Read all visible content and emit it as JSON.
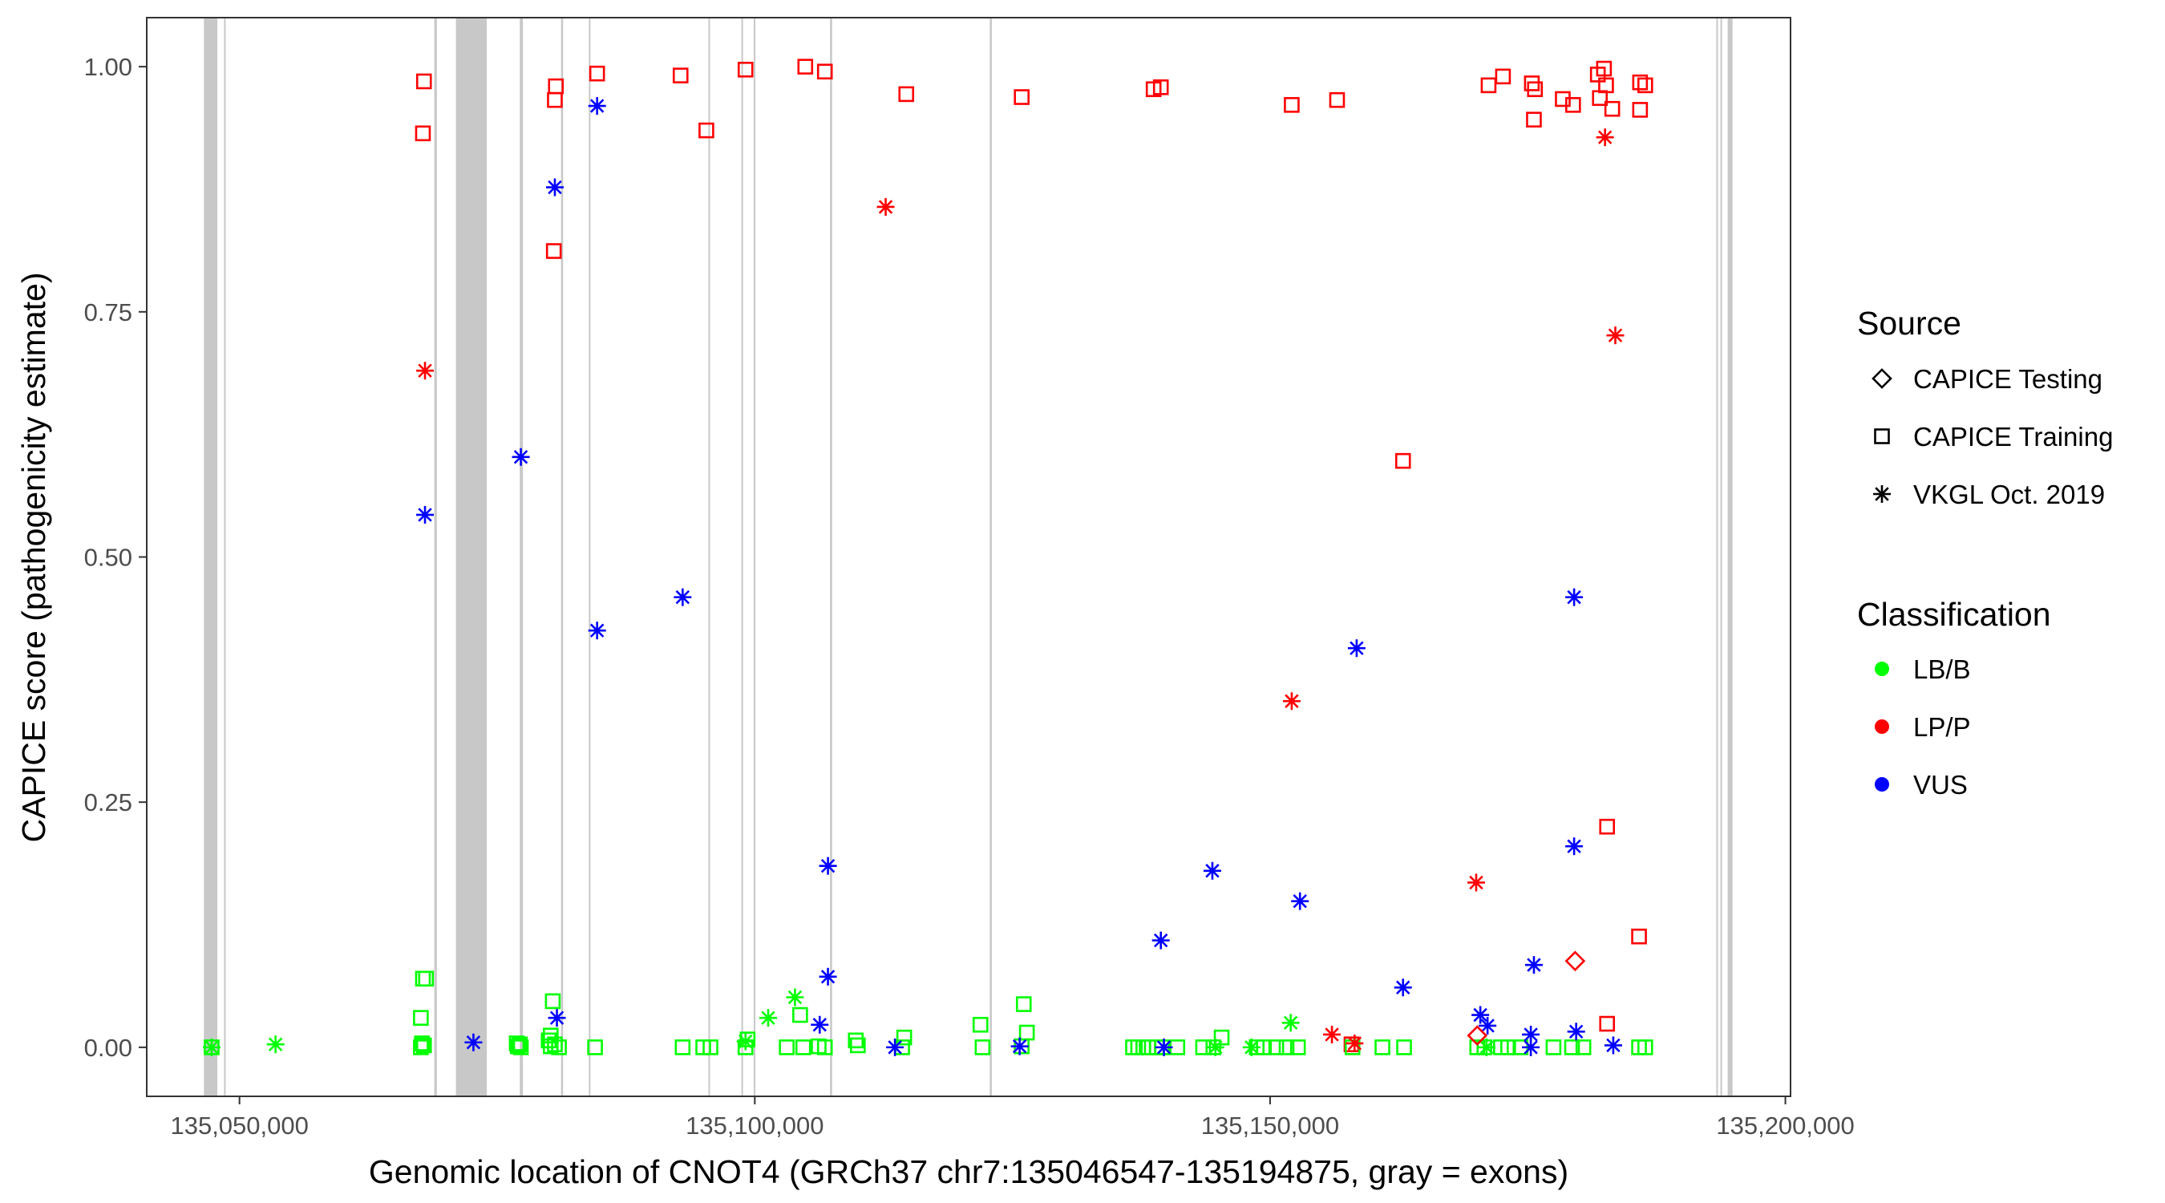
{
  "chart_data": {
    "type": "scatter",
    "xlabel": "Genomic location of CNOT4 (GRCh37 chr7:135046547-135194875, gray = exons)",
    "ylabel": "CAPICE score (pathogenicity estimate)",
    "xlim": [
      135041000,
      135200500
    ],
    "ylim": [
      -0.05,
      1.05
    ],
    "x_ticks": [
      {
        "value": 135050000,
        "label": "135,050,000"
      },
      {
        "value": 135100000,
        "label": "135,100,000"
      },
      {
        "value": 135150000,
        "label": "135,150,000"
      },
      {
        "value": 135200000,
        "label": "135,200,000"
      }
    ],
    "y_ticks": [
      {
        "value": 0,
        "label": "0.00"
      },
      {
        "value": 0.25,
        "label": "0.25"
      },
      {
        "value": 0.5,
        "label": "0.50"
      },
      {
        "value": 0.75,
        "label": "0.75"
      },
      {
        "value": 1.0,
        "label": "1.00"
      }
    ],
    "exons": [
      [
        135046547,
        135047850
      ],
      [
        135048500,
        135048650
      ],
      [
        135068900,
        135069150
      ],
      [
        135071000,
        135074000
      ],
      [
        135077200,
        135077500
      ],
      [
        135081200,
        135081400
      ],
      [
        135083900,
        135084000
      ],
      [
        135095500,
        135095600
      ],
      [
        135098700,
        135098800
      ],
      [
        135099900,
        135100000
      ],
      [
        135107300,
        135107500
      ],
      [
        135122800,
        135123000
      ],
      [
        135193300,
        135193450
      ],
      [
        135193700,
        135193850
      ],
      [
        135194400,
        135194875
      ]
    ],
    "legend": {
      "source_title": "Source",
      "sources": [
        {
          "name": "CAPICE Testing",
          "shape": "diamond"
        },
        {
          "name": "CAPICE Training",
          "shape": "square"
        },
        {
          "name": "VKGL Oct. 2019",
          "shape": "asterisk"
        }
      ],
      "classification_title": "Classification",
      "classifications": [
        {
          "name": "LB/B",
          "color": "#00ff00"
        },
        {
          "name": "LP/P",
          "color": "#ff0000"
        },
        {
          "name": "VUS",
          "color": "#0000ff"
        }
      ]
    },
    "series": [
      {
        "name": "CAPICE Training - LP/P",
        "source": "CAPICE Training",
        "classification": "LP/P",
        "points": [
          [
            135067900,
            0.985
          ],
          [
            135067800,
            0.932
          ],
          [
            135080700,
            0.98
          ],
          [
            135080600,
            0.966
          ],
          [
            135080500,
            0.812
          ],
          [
            135084700,
            0.993
          ],
          [
            135092800,
            0.991
          ],
          [
            135095300,
            0.935
          ],
          [
            135099100,
            0.997
          ],
          [
            135104900,
            1.0
          ],
          [
            135106800,
            0.995
          ],
          [
            135114700,
            0.972
          ],
          [
            135125900,
            0.969
          ],
          [
            135138700,
            0.977
          ],
          [
            135139400,
            0.979
          ],
          [
            135152100,
            0.961
          ],
          [
            135156500,
            0.966
          ],
          [
            135162900,
            0.598
          ],
          [
            135171200,
            0.981
          ],
          [
            135172600,
            0.99
          ],
          [
            135175400,
            0.983
          ],
          [
            135175700,
            0.977
          ],
          [
            135175600,
            0.946
          ],
          [
            135178400,
            0.967
          ],
          [
            135179400,
            0.961
          ],
          [
            135181800,
            0.992
          ],
          [
            135182400,
            0.998
          ],
          [
            135182600,
            0.981
          ],
          [
            135182000,
            0.968
          ],
          [
            135183200,
            0.957
          ],
          [
            135185900,
            0.984
          ],
          [
            135186400,
            0.981
          ],
          [
            135185900,
            0.956
          ],
          [
            135182700,
            0.225
          ],
          [
            135185800,
            0.113
          ],
          [
            135182700,
            0.024
          ],
          [
            135157900,
            0.003
          ]
        ]
      },
      {
        "name": "CAPICE Training - LB/B",
        "source": "CAPICE Training",
        "classification": "LB/B",
        "points": [
          [
            135047300,
            0.0
          ],
          [
            135067800,
            0.07
          ],
          [
            135068100,
            0.07
          ],
          [
            135067600,
            0.03
          ],
          [
            135067700,
            0.004
          ],
          [
            135067900,
            0.002
          ],
          [
            135067600,
            0.0
          ],
          [
            135076900,
            0.004
          ],
          [
            135077200,
            0.003
          ],
          [
            135077000,
            0.001
          ],
          [
            135077300,
            0.0
          ],
          [
            135080400,
            0.047
          ],
          [
            135080200,
            0.012
          ],
          [
            135080000,
            0.007
          ],
          [
            135080600,
            0.003
          ],
          [
            135080200,
            0.001
          ],
          [
            135081000,
            0.0
          ],
          [
            135084500,
            0.0
          ],
          [
            135093000,
            0.0
          ],
          [
            135095000,
            0.0
          ],
          [
            135095700,
            0.0
          ],
          [
            135099100,
            0.0
          ],
          [
            135099300,
            0.008
          ],
          [
            135103100,
            0.0
          ],
          [
            135104400,
            0.033
          ],
          [
            135104700,
            0.0
          ],
          [
            135106200,
            0.001
          ],
          [
            135106800,
            0.0
          ],
          [
            135109800,
            0.007
          ],
          [
            135110000,
            0.002
          ],
          [
            135114300,
            0.0
          ],
          [
            135114500,
            0.01
          ],
          [
            135121900,
            0.023
          ],
          [
            135122100,
            0.0
          ],
          [
            135126100,
            0.044
          ],
          [
            135126400,
            0.015
          ],
          [
            135125900,
            0.001
          ],
          [
            135136700,
            0.0
          ],
          [
            135137200,
            0.0
          ],
          [
            135137700,
            0.0
          ],
          [
            135138200,
            0.0
          ],
          [
            135139000,
            0.0
          ],
          [
            135139500,
            0.0
          ],
          [
            135141000,
            0.0
          ],
          [
            135143500,
            0.0
          ],
          [
            135145300,
            0.01
          ],
          [
            135144500,
            0.0
          ],
          [
            135148700,
            0.0
          ],
          [
            135149400,
            0.0
          ],
          [
            135150600,
            0.0
          ],
          [
            135151600,
            0.0
          ],
          [
            135152700,
            0.0
          ],
          [
            135158000,
            0.0
          ],
          [
            135160900,
            0.0
          ],
          [
            135163000,
            0.0
          ],
          [
            135170100,
            0.0
          ],
          [
            135170800,
            0.0
          ],
          [
            135172400,
            0.0
          ],
          [
            135173100,
            0.0
          ],
          [
            135174300,
            0.0
          ],
          [
            135177500,
            0.0
          ],
          [
            135179300,
            0.0
          ],
          [
            135180400,
            0.0
          ],
          [
            135185800,
            0.0
          ],
          [
            135186400,
            0.0
          ]
        ]
      },
      {
        "name": "VKGL - LP/P",
        "source": "VKGL Oct. 2019",
        "classification": "LP/P",
        "points": [
          [
            135068000,
            0.69
          ],
          [
            135112700,
            0.857
          ],
          [
            135152100,
            0.353
          ],
          [
            135182500,
            0.928
          ],
          [
            135183500,
            0.726
          ],
          [
            135170000,
            0.168
          ],
          [
            135156000,
            0.013
          ],
          [
            135158200,
            0.004
          ]
        ]
      },
      {
        "name": "VKGL - VUS",
        "source": "VKGL Oct. 2019",
        "classification": "VUS",
        "points": [
          [
            135084700,
            0.96
          ],
          [
            135080600,
            0.877
          ],
          [
            135077300,
            0.602
          ],
          [
            135068000,
            0.543
          ],
          [
            135093000,
            0.459
          ],
          [
            135084700,
            0.425
          ],
          [
            135107100,
            0.185
          ],
          [
            135107100,
            0.072
          ],
          [
            135106300,
            0.023
          ],
          [
            135080800,
            0.03
          ],
          [
            135072700,
            0.005
          ],
          [
            135113600,
            0.0
          ],
          [
            135125700,
            0.001
          ],
          [
            135139400,
            0.109
          ],
          [
            135139700,
            0.0
          ],
          [
            135144400,
            0.18
          ],
          [
            135152900,
            0.149
          ],
          [
            135158400,
            0.407
          ],
          [
            135162900,
            0.061
          ],
          [
            135170400,
            0.033
          ],
          [
            135171100,
            0.022
          ],
          [
            135175300,
            0.013
          ],
          [
            135175300,
            0.0
          ],
          [
            135175600,
            0.084
          ],
          [
            135179500,
            0.459
          ],
          [
            135179500,
            0.205
          ],
          [
            135179700,
            0.016
          ],
          [
            135183300,
            0.002
          ]
        ]
      },
      {
        "name": "VKGL - LB/B",
        "source": "VKGL Oct. 2019",
        "classification": "LB/B",
        "points": [
          [
            135047300,
            0.0
          ],
          [
            135053500,
            0.003
          ],
          [
            135101300,
            0.03
          ],
          [
            135103900,
            0.051
          ],
          [
            135099100,
            0.006
          ],
          [
            135144700,
            0.0
          ],
          [
            135148200,
            0.0
          ],
          [
            135152000,
            0.025
          ],
          [
            135171000,
            0.0
          ]
        ]
      },
      {
        "name": "CAPICE Testing - LP/P",
        "source": "CAPICE Testing",
        "classification": "LP/P",
        "points": [
          [
            135179600,
            0.088
          ],
          [
            135170100,
            0.012
          ]
        ]
      }
    ]
  }
}
